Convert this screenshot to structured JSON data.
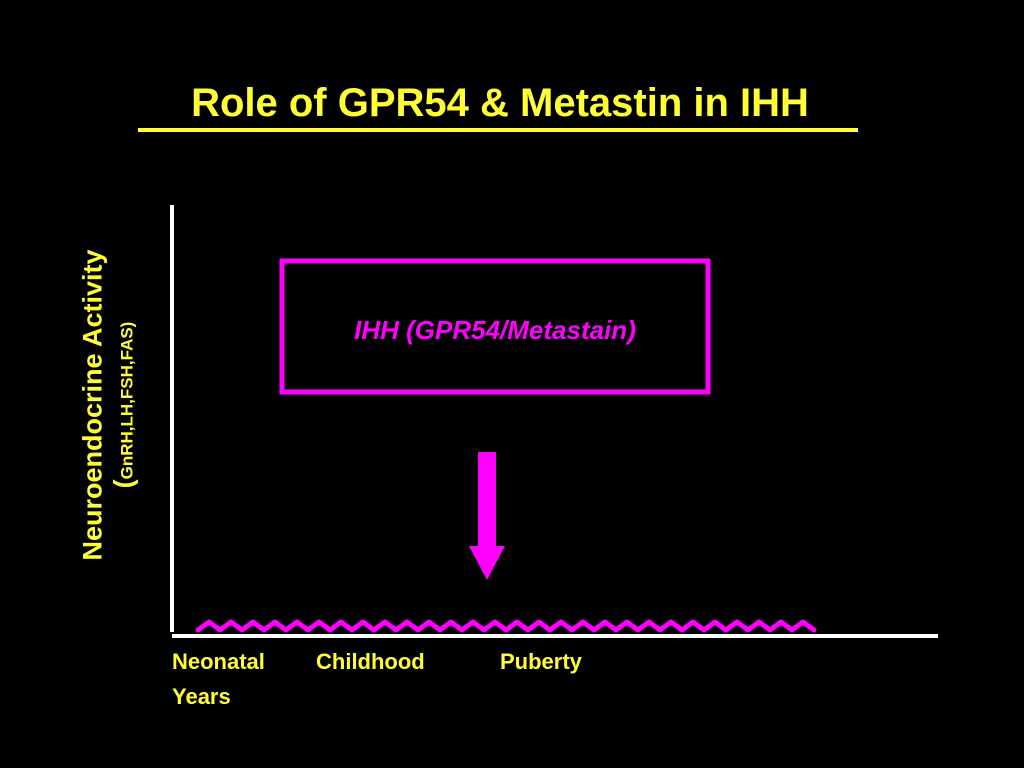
{
  "title": "Role of  GPR54 & Metastin in IHH",
  "y_axis": {
    "label_main": "Neuroendocrine Activity",
    "label_open_paren": "(",
    "label_sub": "GnRH,LH,FSH,FAS)"
  },
  "box": {
    "label": "IHH (GPR54/Metastain)"
  },
  "x_axis": {
    "labels": [
      "Neonatal",
      "Childhood",
      "Puberty"
    ],
    "unit": "Years"
  },
  "colors": {
    "background": "#000000",
    "text": "#ffff33",
    "accent": "#ff00ff",
    "axis": "#ffffff"
  }
}
